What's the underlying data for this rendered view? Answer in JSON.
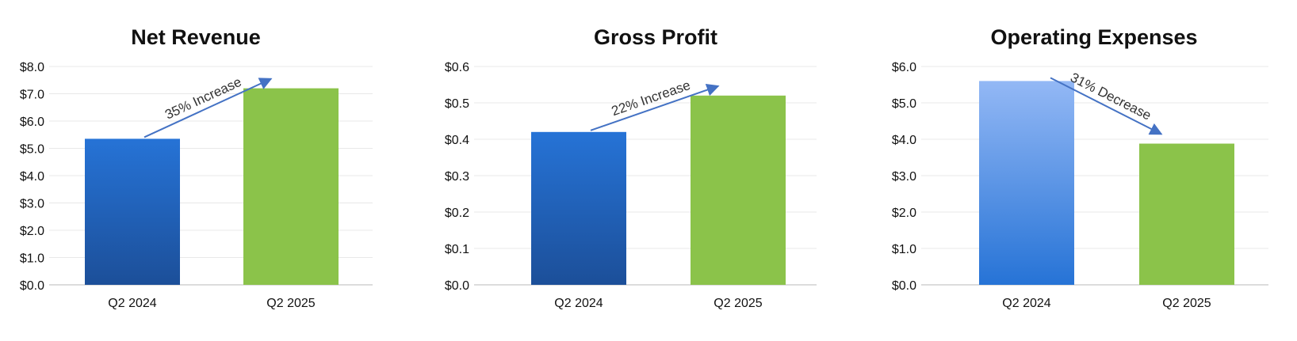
{
  "chart_data": [
    {
      "type": "bar",
      "title": "Net Revenue",
      "categories": [
        "Q2 2024",
        "Q2 2025"
      ],
      "values": [
        5.35,
        7.2
      ],
      "ylim": [
        0,
        8
      ],
      "yticks": [
        "$0.0",
        "$1.0",
        "$2.0",
        "$3.0",
        "$4.0",
        "$5.0",
        "$6.0",
        "$7.0",
        "$8.0"
      ],
      "grid": true,
      "annotation": "35% Increase",
      "bar_colors": [
        [
          "#2673d6",
          "#1c4f99"
        ],
        [
          "#8bc34a",
          "#8bc34a"
        ]
      ]
    },
    {
      "type": "bar",
      "title": "Gross Profit",
      "categories": [
        "Q2 2024",
        "Q2 2025"
      ],
      "values": [
        0.42,
        0.52
      ],
      "ylim": [
        0,
        0.6
      ],
      "yticks": [
        "$0.0",
        "$0.1",
        "$0.2",
        "$0.3",
        "$0.4",
        "$0.5",
        "$0.6"
      ],
      "grid": true,
      "annotation": "22% Increase",
      "bar_colors": [
        [
          "#2673d6",
          "#1c4f99"
        ],
        [
          "#8bc34a",
          "#8bc34a"
        ]
      ]
    },
    {
      "type": "bar",
      "title": "Operating Expenses",
      "categories": [
        "Q2 2024",
        "Q2 2025"
      ],
      "values": [
        5.6,
        3.88
      ],
      "ylim": [
        0,
        6
      ],
      "yticks": [
        "$0.0",
        "$1.0",
        "$2.0",
        "$3.0",
        "$4.0",
        "$5.0",
        "$6.0"
      ],
      "grid": true,
      "annotation": "31% Decrease",
      "bar_colors": [
        [
          "#93b8f5",
          "#2673d6"
        ],
        [
          "#8bc34a",
          "#8bc34a"
        ]
      ]
    }
  ],
  "colors": {
    "arrow": "#4472c4",
    "grid": "#e8e8e8",
    "axis": "#d0d0d0",
    "text": "#111111",
    "annotation_text": "#333333"
  }
}
